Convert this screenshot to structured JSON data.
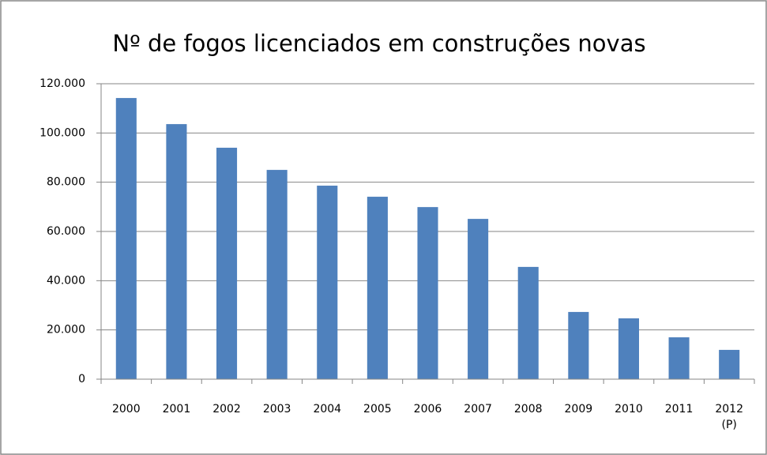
{
  "chart_data": {
    "type": "bar",
    "title": "Nº de fogos licenciados em construções novas",
    "categories": [
      "2000",
      "2001",
      "2002",
      "2003",
      "2004",
      "2005",
      "2006",
      "2007",
      "2008",
      "2009",
      "2010",
      "2011",
      "2012 (P)"
    ],
    "values": [
      114200,
      103600,
      94000,
      85000,
      78600,
      74100,
      69900,
      65100,
      45600,
      27300,
      24700,
      17000,
      11900
    ],
    "color": "#4f81bd",
    "ylim": [
      0,
      120000
    ],
    "yticks": [
      0,
      {
        "value": 20000,
        "label": "20.000"
      },
      {
        "value": 40000,
        "label": "40.000"
      },
      {
        "value": 60000,
        "label": "60.000"
      },
      {
        "value": 80000,
        "label": "80.000"
      },
      {
        "value": 100000,
        "label": "100.000"
      },
      {
        "value": 120000,
        "label": "120.000"
      }
    ],
    "grid": true
  }
}
